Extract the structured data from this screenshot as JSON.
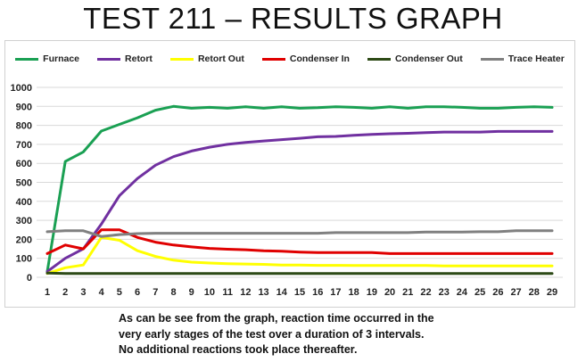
{
  "title": "TEST 211 – RESULTS GRAPH",
  "caption": [
    "As can be see from the graph, reaction time occurred in the",
    "very early stages of the test over a duration of 3 intervals.",
    "No additional reactions took place thereafter."
  ],
  "chart_data": {
    "type": "line",
    "legend_position": "top",
    "grid": {
      "horizontal": true,
      "vertical": false
    },
    "x": [
      1,
      2,
      3,
      4,
      5,
      6,
      7,
      8,
      9,
      10,
      11,
      12,
      13,
      14,
      15,
      16,
      17,
      18,
      19,
      20,
      21,
      22,
      23,
      24,
      25,
      26,
      27,
      28,
      29
    ],
    "ylim": [
      0,
      1000
    ],
    "yticks": [
      0,
      100,
      200,
      300,
      400,
      500,
      600,
      700,
      800,
      900,
      1000
    ],
    "series": [
      {
        "name": "Furnace",
        "color": "#1aa053",
        "values": [
          30,
          610,
          660,
          770,
          805,
          840,
          880,
          900,
          890,
          895,
          890,
          898,
          890,
          898,
          890,
          893,
          898,
          895,
          890,
          898,
          890,
          898,
          898,
          895,
          890,
          890,
          895,
          898,
          895
        ]
      },
      {
        "name": "Retort",
        "color": "#7030a0",
        "values": [
          30,
          100,
          150,
          280,
          430,
          520,
          590,
          635,
          665,
          685,
          700,
          710,
          718,
          725,
          732,
          740,
          742,
          748,
          752,
          756,
          758,
          762,
          765,
          765,
          765,
          768,
          768,
          768,
          768
        ]
      },
      {
        "name": "Retort Out",
        "color": "#ffff00",
        "values": [
          20,
          50,
          65,
          210,
          195,
          140,
          110,
          90,
          80,
          75,
          72,
          70,
          68,
          65,
          65,
          63,
          63,
          62,
          62,
          62,
          62,
          62,
          60,
          60,
          60,
          60,
          60,
          60,
          60
        ]
      },
      {
        "name": "Condenser  In",
        "color": "#e00000",
        "values": [
          125,
          170,
          150,
          250,
          250,
          210,
          185,
          170,
          160,
          152,
          148,
          145,
          140,
          137,
          133,
          130,
          130,
          130,
          130,
          125,
          125,
          125,
          125,
          125,
          125,
          125,
          125,
          125,
          125
        ]
      },
      {
        "name": "Condenser Out",
        "color": "#2d4a16",
        "values": [
          22,
          20,
          20,
          20,
          20,
          20,
          20,
          20,
          20,
          20,
          20,
          20,
          20,
          20,
          20,
          20,
          20,
          20,
          20,
          20,
          20,
          20,
          20,
          20,
          20,
          20,
          20,
          20,
          20
        ]
      },
      {
        "name": "Trace Heater",
        "color": "#808080",
        "values": [
          240,
          245,
          245,
          215,
          225,
          230,
          232,
          232,
          232,
          232,
          232,
          232,
          232,
          232,
          232,
          232,
          235,
          235,
          235,
          235,
          235,
          238,
          238,
          238,
          240,
          240,
          245,
          245,
          245
        ]
      }
    ]
  }
}
